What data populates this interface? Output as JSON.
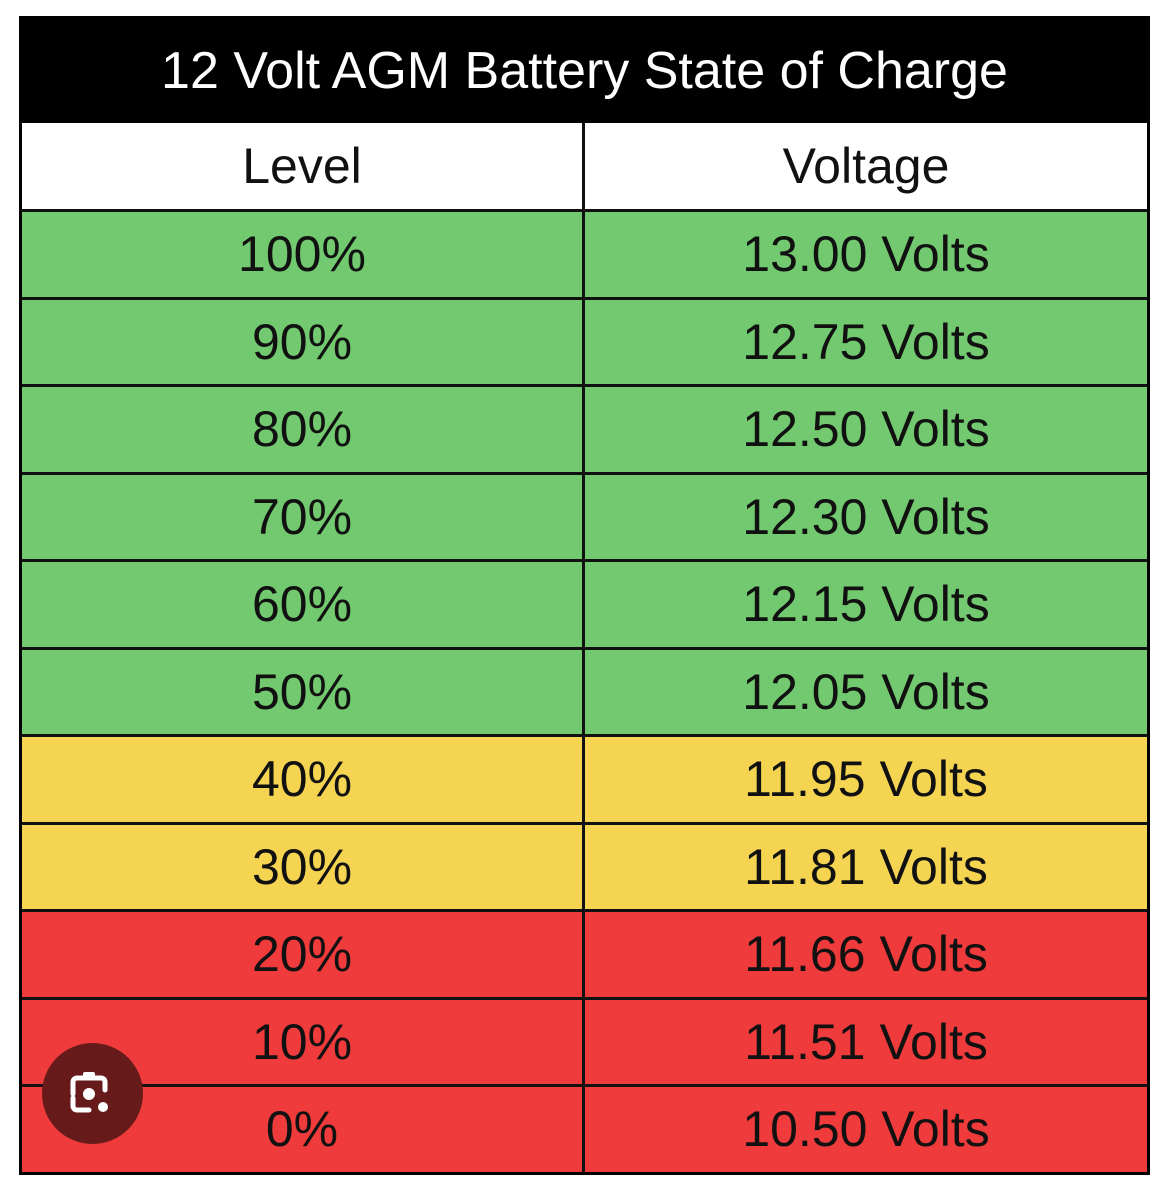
{
  "title": "12 Volt AGM Battery State of Charge",
  "headers": [
    "Level",
    "Voltage"
  ],
  "colors": {
    "green": "#72c96f",
    "yellow": "#f5d452",
    "red": "#ef3b3b"
  },
  "rows": [
    {
      "level": "100%",
      "voltage": "13.00 Volts",
      "color": "green"
    },
    {
      "level": "90%",
      "voltage": "12.75 Volts",
      "color": "green"
    },
    {
      "level": "80%",
      "voltage": "12.50 Volts",
      "color": "green"
    },
    {
      "level": "70%",
      "voltage": "12.30 Volts",
      "color": "green"
    },
    {
      "level": "60%",
      "voltage": "12.15 Volts",
      "color": "green"
    },
    {
      "level": "50%",
      "voltage": "12.05 Volts",
      "color": "green"
    },
    {
      "level": "40%",
      "voltage": "11.95 Volts",
      "color": "yellow"
    },
    {
      "level": "30%",
      "voltage": "11.81 Volts",
      "color": "yellow"
    },
    {
      "level": "20%",
      "voltage": "11.66 Volts",
      "color": "red"
    },
    {
      "level": "10%",
      "voltage": "11.51 Volts",
      "color": "red"
    },
    {
      "level": "0%",
      "voltage": "10.50 Volts",
      "color": "red"
    }
  ],
  "overlay_icon": "lens-camera-icon"
}
